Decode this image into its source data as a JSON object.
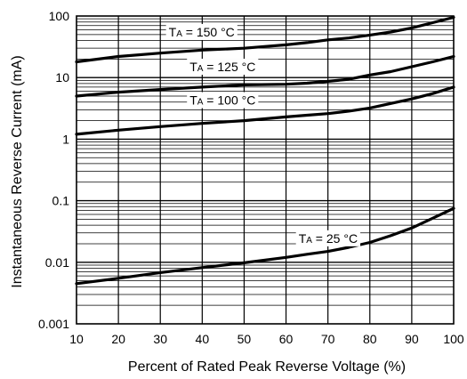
{
  "chart_data": {
    "type": "line",
    "title": "",
    "xlabel": "Percent of Rated Peak Reverse Voltage (%)",
    "ylabel": "Instantaneous Reverse Current (mA)",
    "xlim": [
      10,
      100
    ],
    "ylim": [
      0.001,
      100
    ],
    "yscale": "log",
    "grid": true,
    "x_ticks": [
      "10",
      "20",
      "30",
      "40",
      "50",
      "60",
      "70",
      "80",
      "90",
      "100"
    ],
    "y_ticks": [
      "0.001",
      "0.01",
      "0.1",
      "1",
      "10",
      "100"
    ],
    "series": [
      {
        "name": "TA = 150 °C",
        "label_main": "T",
        "label_sub": "A",
        "label_rest": " = 150 °C",
        "label_at": [
          32,
          55
        ],
        "x": [
          10,
          20,
          30,
          40,
          50,
          60,
          65,
          70,
          75,
          80,
          85,
          90,
          95,
          100
        ],
        "y": [
          18,
          22,
          25,
          28,
          30,
          34,
          37,
          41,
          44,
          49,
          55,
          64,
          78,
          95
        ]
      },
      {
        "name": "TA = 125 °C",
        "label_main": "T",
        "label_sub": "A",
        "label_rest": " = 125 °C",
        "label_at": [
          37,
          15
        ],
        "x": [
          10,
          20,
          30,
          40,
          50,
          60,
          65,
          70,
          75,
          80,
          85,
          90,
          95,
          100
        ],
        "y": [
          5,
          5.8,
          6.4,
          7,
          7.6,
          7.8,
          8.1,
          8.7,
          9.4,
          11,
          12.5,
          15,
          18,
          22
        ]
      },
      {
        "name": "TA = 100 °C",
        "label_main": "T",
        "label_sub": "A",
        "label_rest": " = 100 °C",
        "label_at": [
          37,
          4.3
        ],
        "x": [
          10,
          20,
          30,
          40,
          50,
          60,
          65,
          70,
          75,
          80,
          85,
          90,
          95,
          100
        ],
        "y": [
          1.2,
          1.4,
          1.6,
          1.8,
          2,
          2.3,
          2.45,
          2.6,
          2.85,
          3.2,
          3.8,
          4.5,
          5.5,
          7
        ]
      },
      {
        "name": "TA = 25 °C",
        "label_main": "T",
        "label_sub": "A",
        "label_rest": " = 25 °C",
        "label_at": [
          63,
          0.0245
        ],
        "x": [
          10,
          20,
          30,
          40,
          50,
          60,
          65,
          70,
          75,
          80,
          85,
          90,
          95,
          100
        ],
        "y": [
          0.0045,
          0.0055,
          0.0068,
          0.0082,
          0.0098,
          0.012,
          0.0135,
          0.015,
          0.0175,
          0.021,
          0.027,
          0.036,
          0.052,
          0.075
        ]
      }
    ]
  }
}
